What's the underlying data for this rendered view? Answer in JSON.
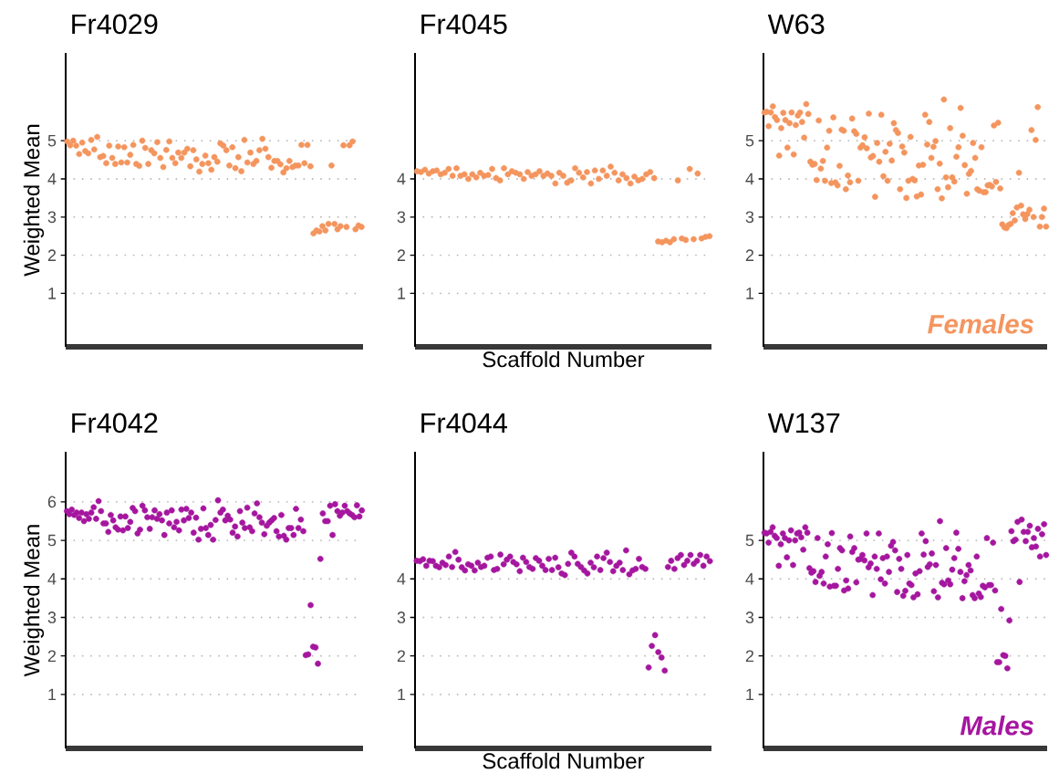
{
  "chart_data": [
    {
      "type": "scatter",
      "title": "Fr4029",
      "ylabel": "Weighted Mean",
      "marker": "circle",
      "grid": "y",
      "tick_labels": "y",
      "ylim": [
        -0.4,
        7.3
      ],
      "yticks": [
        1,
        2,
        3,
        4,
        5
      ],
      "categories": [
        null,
        null,
        null,
        null,
        null,
        null,
        null,
        null,
        null,
        null,
        null,
        null,
        null,
        null,
        null,
        null,
        null,
        null,
        null,
        null,
        null,
        null,
        null,
        null,
        null,
        null,
        null,
        null,
        null,
        null,
        null,
        null,
        null,
        null,
        null,
        null,
        null,
        null,
        null,
        null,
        null,
        null,
        null,
        null,
        null,
        null,
        null,
        null,
        null,
        null,
        null,
        null,
        null,
        null,
        null,
        null,
        null,
        null,
        null,
        null,
        null,
        null,
        null,
        null,
        null,
        null,
        null,
        null,
        null,
        null,
        null,
        null,
        null,
        null,
        null,
        null,
        null,
        null,
        null,
        null,
        null,
        null,
        null,
        null,
        null,
        null,
        null,
        null,
        null,
        null,
        null,
        null,
        null,
        null,
        null,
        null,
        null,
        null,
        null
      ],
      "series": [
        {
          "color": "#f4955e",
          "values": [
            4.98,
            4.88,
            5.0,
            4.87,
            4.65,
            4.95,
            4.73,
            4.67,
            5.02,
            4.77,
            5.1,
            4.57,
            4.6,
            4.41,
            4.87,
            4.55,
            4.39,
            4.85,
            4.43,
            4.83,
            4.43,
            4.63,
            4.89,
            4.39,
            4.34,
            5.0,
            4.81,
            4.39,
            4.75,
            4.67,
            4.96,
            4.55,
            4.31,
            4.76,
            4.98,
            4.55,
            4.41,
            4.69,
            4.55,
            4.69,
            4.79,
            4.33,
            4.75,
            4.51,
            4.19,
            4.39,
            4.61,
            4.41,
            4.24,
            4.57,
            4.45,
            4.93,
            4.87,
            4.75,
            4.35,
            4.83,
            4.28,
            4.57,
            4.2,
            5.02,
            4.43,
            4.69,
            4.39,
            4.47,
            4.75,
            5.05,
            4.79,
            4.57,
            4.29,
            4.47,
            4.47,
            4.38,
            4.17,
            4.28,
            4.47,
            4.31,
            4.35,
            4.35,
            4.89,
            4.41,
            4.89,
            4.33,
            2.57,
            2.65,
            2.62,
            2.76,
            2.65,
            2.82,
            4.35,
            2.82,
            2.68,
            2.76,
            4.88,
            2.74,
            4.88,
            4.98,
            2.68,
            2.78,
            2.74
          ]
        }
      ]
    },
    {
      "type": "scatter",
      "title": "Fr4045",
      "xlabel": "Scaffold Number",
      "marker": "circle",
      "grid": "y",
      "tick_labels": "y",
      "ylim": [
        -0.4,
        7.3
      ],
      "yticks": [
        1,
        2,
        3,
        4
      ],
      "categories": [
        null,
        null,
        null,
        null,
        null,
        null,
        null,
        null,
        null,
        null,
        null,
        null,
        null,
        null,
        null,
        null,
        null,
        null,
        null,
        null,
        null,
        null,
        null,
        null,
        null,
        null,
        null,
        null,
        null,
        null,
        null,
        null,
        null,
        null,
        null,
        null,
        null,
        null,
        null,
        null,
        null,
        null,
        null,
        null,
        null,
        null,
        null,
        null,
        null,
        null,
        null,
        null,
        null,
        null,
        null,
        null,
        null,
        null,
        null,
        null,
        null,
        null,
        null,
        null,
        null,
        null,
        null,
        null,
        null,
        null,
        null,
        null,
        null,
        null,
        null
      ],
      "series": [
        {
          "color": "#f4955e",
          "values": [
            4.2,
            4.18,
            4.24,
            4.14,
            4.2,
            4.22,
            4.12,
            4.16,
            4.26,
            4.08,
            4.28,
            4.08,
            4.12,
            4.0,
            4.12,
            4.04,
            4.16,
            4.08,
            4.1,
            4.26,
            4.02,
            3.96,
            4.28,
            4.12,
            4.2,
            4.16,
            4.12,
            4.0,
            4.18,
            4.08,
            4.12,
            4.2,
            4.08,
            4.14,
            4.08,
            3.88,
            4.16,
            4.08,
            3.9,
            3.96,
            4.28,
            4.16,
            4.04,
            4.18,
            3.88,
            4.22,
            4.0,
            4.22,
            4.08,
            4.32,
            4.16,
            3.96,
            4.12,
            4.02,
            3.88,
            4.06,
            3.96,
            4.0,
            4.12,
            4.18,
            4.02,
            2.36,
            2.34,
            2.38,
            2.34,
            2.42,
            3.96,
            2.44,
            2.4,
            4.26,
            2.42,
            4.14,
            2.44,
            2.48,
            2.5
          ]
        }
      ]
    },
    {
      "type": "scatter",
      "title": "W63",
      "marker": "circle",
      "grid": "y",
      "tick_labels": "y",
      "ylim": [
        -0.4,
        7.3
      ],
      "yticks": [
        1,
        2,
        3,
        4,
        5
      ],
      "annotations": [
        "Females"
      ],
      "categories": [
        null,
        null,
        null,
        null,
        null,
        null,
        null,
        null,
        null,
        null,
        null,
        null,
        null,
        null,
        null,
        null,
        null,
        null,
        null,
        null,
        null,
        null,
        null,
        null,
        null,
        null,
        null,
        null,
        null,
        null,
        null,
        null,
        null,
        null,
        null,
        null,
        null,
        null,
        null,
        null,
        null,
        null,
        null,
        null,
        null,
        null,
        null,
        null,
        null,
        null,
        null,
        null,
        null,
        null,
        null,
        null,
        null,
        null,
        null,
        null,
        null,
        null,
        null,
        null,
        null,
        null,
        null,
        null,
        null,
        null,
        null,
        null,
        null,
        null,
        null,
        null,
        null,
        null,
        null,
        null,
        null,
        null,
        null,
        null,
        null,
        null,
        null,
        null,
        null,
        null,
        null,
        null,
        null,
        null,
        null,
        null,
        null,
        null,
        null,
        null,
        null,
        null,
        null,
        null,
        null,
        null,
        null,
        null,
        null,
        null,
        null,
        null,
        null,
        null,
        null,
        null,
        null,
        null,
        null,
        null,
        null,
        null,
        null,
        null,
        null,
        null,
        null,
        null,
        null,
        null,
        null,
        null,
        null,
        null,
        null,
        null
      ],
      "series": [
        {
          "color": "#f4955e",
          "values": [
            5.74,
            5.76,
            5.38,
            5.74,
            5.9,
            5.62,
            5.54,
            4.61,
            5.33,
            5.73,
            5.54,
            4.82,
            5.46,
            5.74,
            4.64,
            5.41,
            5.66,
            5.74,
            5.49,
            5.08,
            5.96,
            5.7,
            4.45,
            4.37,
            4.39,
            3.97,
            5.53,
            4.27,
            4.47,
            3.95,
            4.82,
            5.26,
            3.89,
            5.61,
            3.91,
            3.83,
            4.34,
            5.29,
            5.26,
            3.73,
            4.09,
            3.91,
            5.58,
            5.25,
            5.18,
            3.95,
            4.82,
            4.88,
            5.09,
            4.8,
            5.71,
            4.56,
            4.6,
            3.53,
            4.94,
            4.45,
            5.68,
            4.07,
            4.71,
            3.95,
            4.92,
            4.48,
            5.46,
            5.28,
            5.2,
            3.73,
            4.85,
            4.69,
            3.5,
            3.95,
            5.1,
            4.0,
            3.96,
            3.54,
            4.35,
            3.59,
            4.37,
            5.68,
            4.9,
            5.49,
            4.55,
            4.84,
            4.99,
            3.73,
            4.4,
            3.49,
            6.08,
            4.04,
            3.78,
            5.33,
            4.04,
            3.93,
            4.58,
            4.83,
            5.86,
            5.13,
            4.36,
            3.61,
            4.13,
            4.21,
            4.94,
            4.55,
            3.73,
            3.69,
            4.83,
            3.65,
            3.65,
            3.83,
            3.84,
            3.8,
            5.4,
            3.92,
            5.47,
            3.75,
            2.81,
            2.73,
            2.71,
            2.79,
            2.82,
            3.1,
            2.91,
            3.25,
            4.16,
            3.3,
            3.07,
            2.95,
            3.08,
            3.19,
            5.28,
            3.0,
            5.02,
            5.88,
            2.75,
            3.0,
            3.22,
            2.75
          ]
        }
      ]
    },
    {
      "type": "scatter",
      "title": "Fr4042",
      "ylabel": "Weighted Mean",
      "marker": "circle",
      "grid": "y",
      "tick_labels": "y",
      "ylim": [
        -0.4,
        7.3
      ],
      "yticks": [
        1,
        2,
        3,
        4,
        5,
        6
      ],
      "categories": [
        null,
        null,
        null,
        null,
        null,
        null,
        null,
        null,
        null,
        null,
        null,
        null,
        null,
        null,
        null,
        null,
        null,
        null,
        null,
        null,
        null,
        null,
        null,
        null,
        null,
        null,
        null,
        null,
        null,
        null,
        null,
        null,
        null,
        null,
        null,
        null,
        null,
        null,
        null,
        null,
        null,
        null,
        null,
        null,
        null,
        null,
        null,
        null,
        null,
        null,
        null,
        null,
        null,
        null,
        null,
        null,
        null,
        null,
        null,
        null,
        null,
        null,
        null,
        null,
        null,
        null,
        null,
        null,
        null,
        null,
        null,
        null,
        null,
        null,
        null,
        null,
        null,
        null,
        null,
        null,
        null,
        null,
        null,
        null,
        null,
        null,
        null,
        null,
        null,
        null,
        null,
        null,
        null,
        null,
        null,
        null,
        null,
        null,
        null,
        null,
        null,
        null,
        null,
        null,
        null,
        null,
        null,
        null,
        null,
        null,
        null,
        null,
        null,
        null,
        null,
        null,
        null,
        null,
        null,
        null,
        null,
        null
      ],
      "series": [
        {
          "color": "#a5169f",
          "values": [
            5.76,
            5.68,
            5.8,
            5.66,
            5.72,
            5.58,
            5.72,
            5.5,
            5.68,
            5.56,
            5.72,
            5.86,
            5.56,
            6.02,
            5.76,
            5.44,
            5.44,
            5.22,
            5.66,
            5.52,
            5.34,
            5.28,
            5.62,
            5.26,
            5.62,
            5.32,
            5.48,
            5.84,
            5.76,
            5.18,
            5.28,
            5.9,
            5.78,
            5.6,
            5.3,
            5.6,
            5.78,
            5.56,
            5.68,
            5.52,
            5.14,
            5.72,
            5.44,
            5.78,
            5.34,
            5.48,
            5.26,
            5.8,
            5.52,
            5.82,
            5.58,
            5.72,
            5.2,
            5.59,
            5.02,
            5.3,
            5.83,
            5.32,
            5.14,
            5.4,
            5.02,
            5.53,
            6.04,
            5.72,
            5.8,
            5.52,
            5.64,
            5.54,
            5.2,
            5.36,
            5.1,
            5.76,
            5.46,
            5.32,
            5.85,
            5.34,
            5.24,
            5.7,
            5.96,
            5.6,
            5.46,
            5.16,
            5.38,
            5.46,
            5.52,
            5.58,
            5.24,
            5.1,
            5.66,
            5.12,
            5.02,
            5.32,
            5.32,
            5.14,
            5.82,
            5.32,
            5.54,
            5.24,
            2.02,
            2.04,
            3.32,
            2.24,
            2.22,
            1.8,
            4.52,
            5.7,
            5.5,
            5.5,
            5.9,
            5.14,
            5.94,
            5.76,
            5.64,
            5.72,
            5.9,
            5.76,
            5.7,
            5.66,
            5.6,
            5.91,
            5.62,
            5.78
          ]
        }
      ]
    },
    {
      "type": "scatter",
      "title": "Fr4044",
      "xlabel": "Scaffold Number",
      "marker": "circle",
      "grid": "y",
      "tick_labels": "y",
      "ylim": [
        -0.4,
        7.3
      ],
      "yticks": [
        1,
        2,
        3,
        4
      ],
      "categories": [
        null,
        null,
        null,
        null,
        null,
        null,
        null,
        null,
        null,
        null,
        null,
        null,
        null,
        null,
        null,
        null,
        null,
        null,
        null,
        null,
        null,
        null,
        null,
        null,
        null,
        null,
        null,
        null,
        null,
        null,
        null,
        null,
        null,
        null,
        null,
        null,
        null,
        null,
        null,
        null,
        null,
        null,
        null,
        null,
        null,
        null,
        null,
        null,
        null,
        null,
        null,
        null,
        null,
        null,
        null,
        null,
        null,
        null,
        null,
        null,
        null,
        null,
        null,
        null,
        null,
        null,
        null,
        null,
        null,
        null,
        null,
        null,
        null,
        null,
        null,
        null,
        null,
        null,
        null,
        null,
        null,
        null,
        null,
        null,
        null,
        null,
        null,
        null,
        null,
        null,
        null,
        null
      ],
      "series": [
        {
          "color": "#a5169f",
          "values": [
            4.47,
            4.46,
            4.51,
            4.34,
            4.47,
            4.46,
            4.34,
            4.3,
            4.42,
            4.36,
            4.58,
            4.31,
            4.7,
            4.5,
            4.3,
            4.22,
            4.38,
            4.34,
            4.22,
            4.42,
            4.31,
            4.34,
            4.55,
            4.58,
            4.23,
            4.26,
            4.63,
            4.38,
            4.5,
            4.58,
            4.44,
            4.38,
            4.2,
            4.55,
            4.44,
            4.31,
            4.26,
            4.54,
            4.47,
            4.34,
            4.23,
            4.52,
            4.23,
            4.55,
            4.3,
            4.14,
            4.1,
            4.39,
            4.68,
            4.58,
            4.39,
            4.31,
            4.22,
            4.14,
            4.42,
            4.3,
            4.58,
            4.23,
            4.54,
            4.68,
            4.44,
            4.2,
            4.34,
            4.42,
            4.23,
            4.74,
            4.12,
            4.22,
            4.26,
            4.52,
            4.31,
            4.26,
            1.7,
            2.26,
            2.54,
            2.1,
            1.96,
            1.62,
            4.31,
            4.47,
            4.26,
            4.54,
            4.62,
            4.36,
            4.47,
            4.62,
            4.39,
            4.47,
            4.62,
            4.34,
            4.58,
            4.46
          ]
        }
      ]
    },
    {
      "type": "scatter",
      "title": "W137",
      "marker": "circle",
      "grid": "y",
      "tick_labels": "y",
      "ylim": [
        -0.4,
        7.3
      ],
      "yticks": [
        1,
        2,
        3,
        4,
        5
      ],
      "annotations": [
        "Males"
      ],
      "categories": [
        null,
        null,
        null,
        null,
        null,
        null,
        null,
        null,
        null,
        null,
        null,
        null,
        null,
        null,
        null,
        null,
        null,
        null,
        null,
        null,
        null,
        null,
        null,
        null,
        null,
        null,
        null,
        null,
        null,
        null,
        null,
        null,
        null,
        null,
        null,
        null,
        null,
        null,
        null,
        null,
        null,
        null,
        null,
        null,
        null,
        null,
        null,
        null,
        null,
        null,
        null,
        null,
        null,
        null,
        null,
        null,
        null,
        null,
        null,
        null,
        null,
        null,
        null,
        null,
        null,
        null,
        null,
        null,
        null,
        null,
        null,
        null,
        null,
        null,
        null,
        null,
        null,
        null,
        null,
        null,
        null,
        null,
        null,
        null,
        null,
        null,
        null,
        null,
        null,
        null,
        null,
        null,
        null,
        null,
        null,
        null,
        null,
        null,
        null,
        null,
        null,
        null,
        null,
        null,
        null,
        null,
        null,
        null,
        null,
        null,
        null,
        null,
        null,
        null,
        null,
        null,
        null,
        null,
        null,
        null,
        null,
        null,
        null,
        null,
        null,
        null,
        null,
        null,
        null,
        null,
        null,
        null,
        null,
        null,
        null,
        null,
        null,
        null,
        null
      ],
      "series": [
        {
          "color": "#a5169f",
          "values": [
            5.2,
            5.18,
            4.94,
            5.22,
            5.34,
            5.12,
            5.06,
            4.34,
            4.9,
            5.18,
            5.06,
            4.56,
            5.0,
            5.26,
            4.36,
            5.0,
            5.18,
            5.2,
            5.08,
            4.76,
            5.34,
            5.2,
            4.28,
            4.16,
            4.2,
            3.92,
            5.06,
            4.08,
            4.18,
            3.88,
            4.58,
            4.9,
            3.8,
            5.19,
            3.82,
            3.82,
            4.26,
            4.8,
            4.74,
            3.7,
            3.96,
            3.75,
            5.1,
            4.7,
            4.8,
            3.91,
            4.5,
            4.52,
            4.62,
            4.48,
            5.18,
            4.3,
            4.4,
            3.58,
            4.58,
            4.26,
            5.18,
            3.99,
            4.54,
            3.88,
            4.58,
            4.18,
            4.86,
            4.96,
            4.74,
            3.66,
            4.52,
            4.26,
            3.56,
            3.69,
            4.62,
            3.88,
            3.84,
            3.52,
            4.14,
            3.6,
            4.2,
            5.18,
            4.63,
            4.98,
            4.31,
            4.38,
            4.66,
            3.68,
            4.36,
            3.52,
            5.5,
            3.9,
            3.86,
            4.8,
            3.96,
            3.86,
            4.24,
            4.54,
            5.2,
            4.78,
            4.18,
            3.5,
            3.94,
            4.1,
            4.36,
            4.22,
            3.58,
            3.5,
            4.58,
            3.62,
            3.53,
            3.82,
            3.78,
            5.06,
            3.84,
            3.84,
            4.94,
            3.7,
            1.84,
            1.84,
            3.22,
            2.02,
            2.0,
            1.68,
            2.92,
            5.24,
            4.98,
            5.02,
            5.48,
            3.92,
            5.54,
            5.22,
            4.98,
            5.22,
            5.38,
            4.82,
            5.06,
            4.84,
            5.3,
            4.58,
            5.16,
            5.42,
            4.62
          ]
        }
      ]
    }
  ]
}
